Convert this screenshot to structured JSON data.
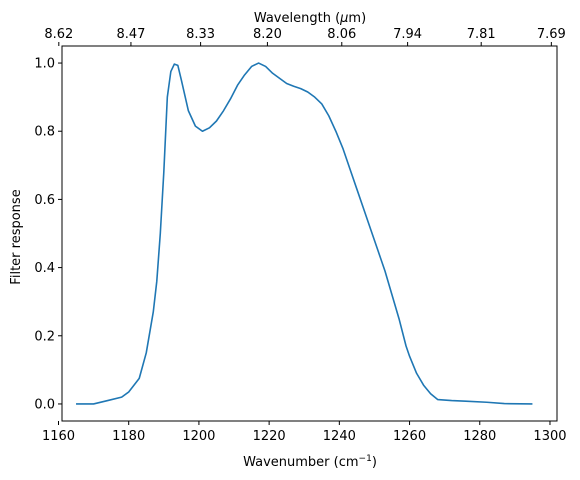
{
  "chart_data": {
    "type": "line",
    "xlabel": "Wavenumber (cm",
    "xlabel_sup": "−1",
    "xlabel_end": ")",
    "ylabel": "Filter response",
    "top_xlabel": "Wavelength (",
    "top_xlabel_mu": "μ",
    "top_xlabel_end": "m)",
    "xlim": [
      1161,
      1302
    ],
    "ylim": [
      -0.05,
      1.05
    ],
    "grid": false,
    "x_ticks": [
      1160,
      1180,
      1200,
      1220,
      1240,
      1260,
      1280,
      1300
    ],
    "y_ticks": [
      0.0,
      0.2,
      0.4,
      0.6,
      0.8,
      1.0
    ],
    "y_tick_labels": [
      "0.0",
      "0.2",
      "0.4",
      "0.6",
      "0.8",
      "1.0"
    ],
    "top_ticks": [
      {
        "label": "8.62",
        "value": 8.62
      },
      {
        "label": "8.47",
        "value": 8.47
      },
      {
        "label": "8.33",
        "value": 8.33
      },
      {
        "label": "8.20",
        "value": 8.2
      },
      {
        "label": "8.06",
        "value": 8.06
      },
      {
        "label": "7.94",
        "value": 7.94
      },
      {
        "label": "7.81",
        "value": 7.81
      },
      {
        "label": "7.69",
        "value": 7.69
      }
    ],
    "series": [
      {
        "color": "#1f77b4",
        "x": [
          1165,
          1170,
          1174,
          1178,
          1180,
          1183,
          1185,
          1187,
          1188,
          1189,
          1190,
          1191,
          1192,
          1193,
          1194,
          1195,
          1197,
          1199,
          1201,
          1203,
          1205,
          1207,
          1209,
          1211,
          1213,
          1215,
          1217,
          1219,
          1221,
          1223,
          1225,
          1227,
          1229,
          1231,
          1233,
          1235,
          1237,
          1239,
          1241,
          1243,
          1245,
          1247,
          1249,
          1251,
          1253,
          1255,
          1257,
          1259,
          1260,
          1262,
          1264,
          1266,
          1268,
          1272,
          1276,
          1282,
          1287,
          1295
        ],
        "y": [
          0.0,
          0.0,
          0.01,
          0.02,
          0.035,
          0.075,
          0.15,
          0.27,
          0.36,
          0.5,
          0.68,
          0.9,
          0.975,
          0.997,
          0.993,
          0.95,
          0.86,
          0.815,
          0.8,
          0.81,
          0.83,
          0.86,
          0.895,
          0.935,
          0.965,
          0.99,
          1.0,
          0.99,
          0.97,
          0.955,
          0.94,
          0.932,
          0.925,
          0.915,
          0.9,
          0.88,
          0.845,
          0.8,
          0.75,
          0.69,
          0.63,
          0.57,
          0.51,
          0.45,
          0.39,
          0.32,
          0.25,
          0.17,
          0.14,
          0.09,
          0.055,
          0.03,
          0.013,
          0.01,
          0.008,
          0.005,
          0.001,
          0.0
        ]
      }
    ]
  }
}
